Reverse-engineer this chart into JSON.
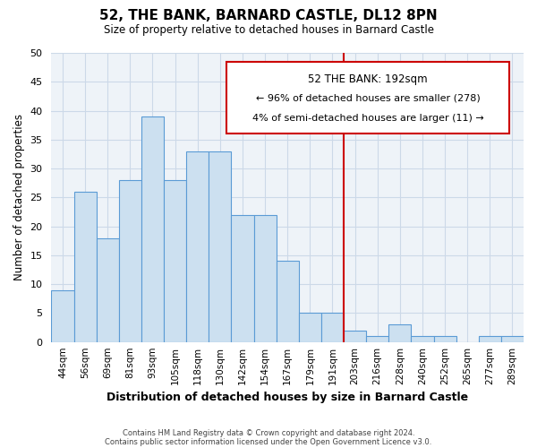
{
  "title": "52, THE BANK, BARNARD CASTLE, DL12 8PN",
  "subtitle": "Size of property relative to detached houses in Barnard Castle",
  "xlabel": "Distribution of detached houses by size in Barnard Castle",
  "ylabel": "Number of detached properties",
  "bin_labels": [
    "44sqm",
    "56sqm",
    "69sqm",
    "81sqm",
    "93sqm",
    "105sqm",
    "118sqm",
    "130sqm",
    "142sqm",
    "154sqm",
    "167sqm",
    "179sqm",
    "191sqm",
    "203sqm",
    "216sqm",
    "228sqm",
    "240sqm",
    "252sqm",
    "265sqm",
    "277sqm",
    "289sqm"
  ],
  "bar_values": [
    9,
    26,
    18,
    28,
    39,
    28,
    33,
    33,
    22,
    22,
    14,
    5,
    5,
    2,
    1,
    3,
    1,
    1,
    0,
    1,
    1
  ],
  "bar_color": "#cce0f0",
  "bar_edge_color": "#5b9bd5",
  "vline_x": 12.5,
  "vline_color": "#cc0000",
  "ylim": [
    0,
    50
  ],
  "yticks": [
    0,
    5,
    10,
    15,
    20,
    25,
    30,
    35,
    40,
    45,
    50
  ],
  "annotation_title": "52 THE BANK: 192sqm",
  "annotation_line1": "← 96% of detached houses are smaller (278)",
  "annotation_line2": "4% of semi-detached houses are larger (11) →",
  "annotation_box_color": "#ffffff",
  "annotation_box_edge": "#cc0000",
  "footnote1": "Contains HM Land Registry data © Crown copyright and database right 2024.",
  "footnote2": "Contains public sector information licensed under the Open Government Licence v3.0.",
  "background_color": "#ffffff",
  "grid_color": "#ccd9e8"
}
